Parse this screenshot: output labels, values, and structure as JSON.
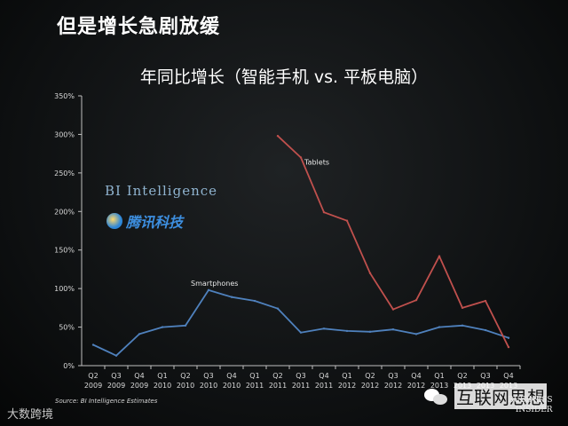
{
  "headline": "但是增长急剧放缓",
  "chart_title": "年同比增长（智能手机 vs. 平板电脑）",
  "source": "Source: BI Intelligence Estimates",
  "bi_brand": "BI Intelligence",
  "tencent_logo_text": "腾讯科技",
  "bottom_left_logo": "大数跨境",
  "wechat_account": "互联网思想",
  "business_insider": [
    "BUSINESS",
    "INSIDER"
  ],
  "colors": {
    "tablets": "#c0504d",
    "smartphones": "#4f81bd",
    "axis": "#bfbfbf"
  },
  "chart_data": {
    "type": "line",
    "title": "年同比增长（智能手机 vs. 平板电脑）",
    "categories": [
      [
        "Q2",
        "2009"
      ],
      [
        "Q3",
        "2009"
      ],
      [
        "Q4",
        "2009"
      ],
      [
        "Q1",
        "2010"
      ],
      [
        "Q2",
        "2010"
      ],
      [
        "Q3",
        "2010"
      ],
      [
        "Q4",
        "2010"
      ],
      [
        "Q1",
        "2011"
      ],
      [
        "Q2",
        "2011"
      ],
      [
        "Q3",
        "2011"
      ],
      [
        "Q4",
        "2011"
      ],
      [
        "Q1",
        "2012"
      ],
      [
        "Q2",
        "2012"
      ],
      [
        "Q3",
        "2012"
      ],
      [
        "Q4",
        "2012"
      ],
      [
        "Q1",
        "2013"
      ],
      [
        "Q2",
        "2013"
      ],
      [
        "Q3",
        "2013"
      ],
      [
        "Q4",
        "2013"
      ]
    ],
    "yticks": [
      "0%",
      "50%",
      "100%",
      "150%",
      "200%",
      "250%",
      "300%",
      "350%"
    ],
    "ylim": [
      0,
      350
    ],
    "series": [
      {
        "name": "Smartphones",
        "color": "#4f81bd",
        "values": [
          27,
          13,
          41,
          50,
          52,
          98,
          89,
          84,
          74,
          43,
          48,
          45,
          44,
          47,
          41,
          50,
          52,
          46,
          36
        ]
      },
      {
        "name": "Tablets",
        "color": "#c0504d",
        "values": [
          null,
          null,
          null,
          null,
          null,
          null,
          null,
          null,
          298,
          270,
          199,
          188,
          120,
          73,
          85,
          142,
          75,
          84,
          24
        ]
      }
    ]
  }
}
